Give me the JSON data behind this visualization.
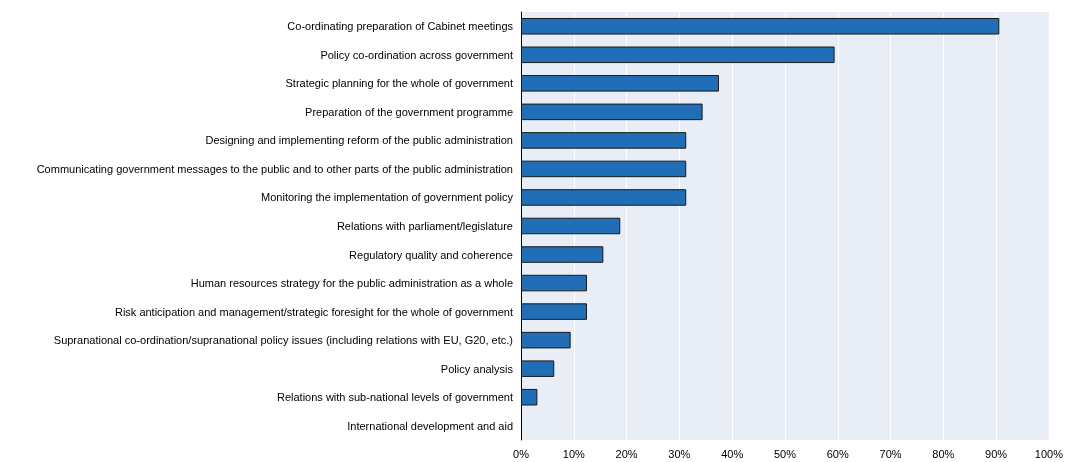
{
  "chart_data": {
    "type": "bar",
    "orientation": "horizontal",
    "categories": [
      "Co-ordinating preparation of Cabinet meetings",
      "Policy co-ordination across government",
      "Strategic planning for the whole of government",
      "Preparation of the government programme",
      "Designing and implementing reform of the public administration",
      "Communicating government messages to the public and to other parts of the public administration",
      "Monitoring the implementation of government policy",
      "Relations with parliament/legislature",
      "Regulatory quality and coherence",
      "Human resources strategy for the public administration as a whole",
      "Risk anticipation and management/strategic foresight for the whole of government",
      "Supranational co-ordination/supranational policy issues (including relations with EU, G20, etc.)",
      "Policy analysis",
      "Relations with sub-national levels of government",
      "International development and aid"
    ],
    "values": [
      90.6,
      59.4,
      37.5,
      34.4,
      31.3,
      31.3,
      31.3,
      18.8,
      15.6,
      12.5,
      12.5,
      9.4,
      6.3,
      3.1,
      0
    ],
    "color": "#1f6eb6",
    "xlim": [
      0,
      100
    ],
    "xticks": [
      {
        "value": 0,
        "label": "0%"
      },
      {
        "value": 10,
        "label": "10%"
      },
      {
        "value": 20,
        "label": "20%"
      },
      {
        "value": 30,
        "label": "30%"
      },
      {
        "value": 40,
        "label": "40%"
      },
      {
        "value": 50,
        "label": "50%"
      },
      {
        "value": 60,
        "label": "60%"
      },
      {
        "value": 70,
        "label": "70%"
      },
      {
        "value": 80,
        "label": "80%"
      },
      {
        "value": 90,
        "label": "90%"
      },
      {
        "value": 100,
        "label": "100%"
      }
    ],
    "grid": "x"
  }
}
